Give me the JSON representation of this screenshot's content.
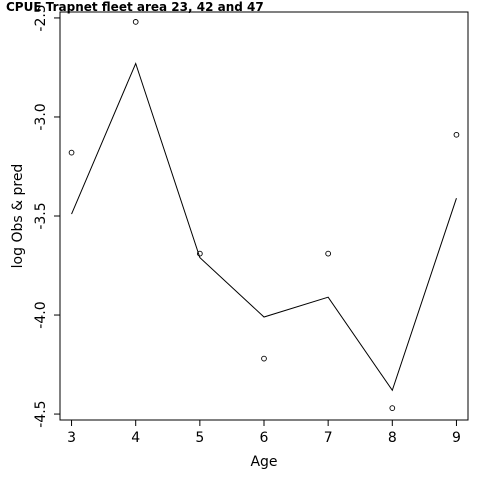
{
  "chart_data": {
    "type": "line",
    "title": "CPUE Trapnet fleet area 23, 42 and 47",
    "xlabel": "Age",
    "ylabel": "log Obs & pred",
    "xlim": [
      2.82,
      9.18
    ],
    "ylim": [
      -4.53,
      -2.47
    ],
    "x_ticks": [
      3,
      4,
      5,
      6,
      7,
      8,
      9
    ],
    "x_tick_labels": [
      "3",
      "4",
      "5",
      "6",
      "7",
      "8",
      "9"
    ],
    "y_ticks": [
      -4.5,
      -4.0,
      -3.5,
      -3.0,
      -2.5
    ],
    "y_tick_labels": [
      "-4.5",
      "-4.0",
      "-3.5",
      "-3.0",
      "-2.5"
    ],
    "grid": false,
    "legend": "none",
    "x": [
      3,
      4,
      5,
      6,
      7,
      8,
      9
    ],
    "series": [
      {
        "style": "points",
        "values": [
          -3.18,
          -2.52,
          -3.69,
          -4.22,
          -3.69,
          -4.47,
          -3.09
        ]
      },
      {
        "style": "line",
        "values": [
          -3.49,
          -2.73,
          -3.71,
          -4.01,
          -3.91,
          -4.38,
          -3.41
        ]
      }
    ],
    "colors": {
      "line": "#000000",
      "points": "#000000",
      "background": "#ffffff"
    }
  }
}
